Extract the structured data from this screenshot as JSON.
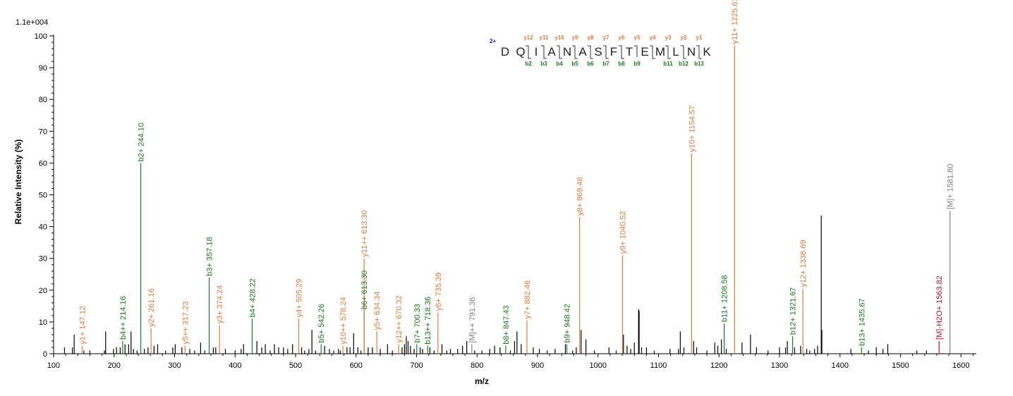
{
  "chart_data": {
    "type": "bar",
    "title": "",
    "scale_label": "1.1e+004",
    "xlabel": "m/z",
    "ylabel": "Relative   Intensity (%)",
    "xlim": [
      100,
      1620
    ],
    "ylim": [
      0,
      100
    ],
    "x_ticks": [
      "100",
      "200",
      "300",
      "400",
      "500",
      "600",
      "700",
      "800",
      "900",
      "1000",
      "1100",
      "1200",
      "1300",
      "1400",
      "1500",
      "1600"
    ],
    "y_ticks": [
      "0",
      "10",
      "20",
      "30",
      "40",
      "50",
      "60",
      "70",
      "80",
      "90",
      "100"
    ],
    "colors": {
      "b": "#1a7a1a",
      "y": "#e07a3a",
      "m": "#808080",
      "loss": "#c0102a",
      "unlabeled": "#000000"
    },
    "annotated_peaks": [
      {
        "mz": 147.12,
        "intensity": 2.5,
        "label": "y1+ 147.12",
        "series": "y"
      },
      {
        "mz": 214.16,
        "intensity": 4,
        "label": "b4++ 214.16",
        "series": "b"
      },
      {
        "mz": 244.1,
        "intensity": 60,
        "label": "b2+ 244.10",
        "series": "b"
      },
      {
        "mz": 261.16,
        "intensity": 8,
        "label": "y2+ 261.16",
        "series": "y"
      },
      {
        "mz": 317.23,
        "intensity": 2.5,
        "label": "y5++ 317.23",
        "series": "y"
      },
      {
        "mz": 357.18,
        "intensity": 24,
        "label": "b3+ 357.18",
        "series": "b"
      },
      {
        "mz": 374.24,
        "intensity": 9,
        "label": "y3+ 374.24",
        "series": "y"
      },
      {
        "mz": 428.22,
        "intensity": 11,
        "label": "b4+ 428.22",
        "series": "b"
      },
      {
        "mz": 505.29,
        "intensity": 11,
        "label": "y4+ 505.29",
        "series": "y"
      },
      {
        "mz": 542.26,
        "intensity": 3,
        "label": "b5+ 542.26",
        "series": "b"
      },
      {
        "mz": 578.24,
        "intensity": 2.5,
        "label": "y10++ 578.24",
        "series": "y"
      },
      {
        "mz": 613.3,
        "intensity": 13.5,
        "label": "b6+ 613.30",
        "series": "b"
      },
      {
        "mz": 613.3,
        "intensity": 30,
        "label": "y11++ 613.30",
        "series": "y"
      },
      {
        "mz": 634.34,
        "intensity": 7,
        "label": "y5+ 634.34",
        "series": "y"
      },
      {
        "mz": 670.32,
        "intensity": 3,
        "label": "y12++ 670.32",
        "series": "y"
      },
      {
        "mz": 700.33,
        "intensity": 3,
        "label": "b7+ 700.33",
        "series": "b"
      },
      {
        "mz": 718.36,
        "intensity": 2.5,
        "label": "b13++ 718.36",
        "series": "b"
      },
      {
        "mz": 735.39,
        "intensity": 13,
        "label": "y6+ 735.39",
        "series": "y"
      },
      {
        "mz": 791.36,
        "intensity": 3,
        "label": "[M]++ 791.36",
        "series": "m"
      },
      {
        "mz": 847.43,
        "intensity": 2.5,
        "label": "b8+ 847.43",
        "series": "b"
      },
      {
        "mz": 882.46,
        "intensity": 10.5,
        "label": "y7+ 882.46",
        "series": "y"
      },
      {
        "mz": 948.42,
        "intensity": 3,
        "label": "b9+ 948.42",
        "series": "b"
      },
      {
        "mz": 969.48,
        "intensity": 43,
        "label": "y8+ 969.48",
        "series": "y"
      },
      {
        "mz": 1040.52,
        "intensity": 31,
        "label": "y9+ 1040.52",
        "series": "y"
      },
      {
        "mz": 1154.57,
        "intensity": 63,
        "label": "y10+ 1154.57",
        "series": "y"
      },
      {
        "mz": 1208.58,
        "intensity": 9.5,
        "label": "b11+ 1208.58",
        "series": "b"
      },
      {
        "mz": 1225.61,
        "intensity": 97,
        "label": "y11+ 1225.61",
        "series": "y"
      },
      {
        "mz": 1321.67,
        "intensity": 5.5,
        "label": "b12+ 1321.67",
        "series": "b"
      },
      {
        "mz": 1338.69,
        "intensity": 20.5,
        "label": "y12+ 1338.69",
        "series": "y"
      },
      {
        "mz": 1435.67,
        "intensity": 2,
        "label": "b13+ 1435.67",
        "series": "b"
      },
      {
        "mz": 1563.82,
        "intensity": 4,
        "label": "[M]-H2O+ 1563.82",
        "series": "loss"
      },
      {
        "mz": 1581.8,
        "intensity": 45,
        "label": "[M]+ 1581.80",
        "series": "m"
      }
    ],
    "unlabeled_peaks": [
      {
        "mz": 118,
        "intensity": 2
      },
      {
        "mz": 131,
        "intensity": 2
      },
      {
        "mz": 134,
        "intensity": 6
      },
      {
        "mz": 150,
        "intensity": 1
      },
      {
        "mz": 160,
        "intensity": 1
      },
      {
        "mz": 184,
        "intensity": 1
      },
      {
        "mz": 186,
        "intensity": 7
      },
      {
        "mz": 199,
        "intensity": 1.5
      },
      {
        "mz": 204,
        "intensity": 2
      },
      {
        "mz": 210,
        "intensity": 2
      },
      {
        "mz": 218,
        "intensity": 3
      },
      {
        "mz": 224,
        "intensity": 3
      },
      {
        "mz": 228,
        "intensity": 7
      },
      {
        "mz": 232,
        "intensity": 1.5
      },
      {
        "mz": 238,
        "intensity": 1
      },
      {
        "mz": 250,
        "intensity": 1.5
      },
      {
        "mz": 256,
        "intensity": 2
      },
      {
        "mz": 266,
        "intensity": 2.5
      },
      {
        "mz": 272,
        "intensity": 3
      },
      {
        "mz": 285,
        "intensity": 1
      },
      {
        "mz": 297,
        "intensity": 2
      },
      {
        "mz": 301,
        "intensity": 3
      },
      {
        "mz": 312,
        "intensity": 2
      },
      {
        "mz": 325,
        "intensity": 1.5
      },
      {
        "mz": 333,
        "intensity": 1
      },
      {
        "mz": 343,
        "intensity": 3.5
      },
      {
        "mz": 350,
        "intensity": 1
      },
      {
        "mz": 364,
        "intensity": 2
      },
      {
        "mz": 368,
        "intensity": 2
      },
      {
        "mz": 384,
        "intensity": 1.5
      },
      {
        "mz": 400,
        "intensity": 1
      },
      {
        "mz": 410,
        "intensity": 1.5
      },
      {
        "mz": 414,
        "intensity": 3
      },
      {
        "mz": 436,
        "intensity": 4
      },
      {
        "mz": 444,
        "intensity": 2
      },
      {
        "mz": 450,
        "intensity": 3
      },
      {
        "mz": 458,
        "intensity": 1
      },
      {
        "mz": 465,
        "intensity": 3
      },
      {
        "mz": 472,
        "intensity": 2
      },
      {
        "mz": 480,
        "intensity": 2
      },
      {
        "mz": 487,
        "intensity": 1.5
      },
      {
        "mz": 495,
        "intensity": 3
      },
      {
        "mz": 510,
        "intensity": 2
      },
      {
        "mz": 515,
        "intensity": 1
      },
      {
        "mz": 522,
        "intensity": 1.5
      },
      {
        "mz": 527,
        "intensity": 7.5
      },
      {
        "mz": 533,
        "intensity": 1
      },
      {
        "mz": 548,
        "intensity": 2.5
      },
      {
        "mz": 556,
        "intensity": 1.5
      },
      {
        "mz": 563,
        "intensity": 1
      },
      {
        "mz": 571,
        "intensity": 1.5
      },
      {
        "mz": 574,
        "intensity": 1
      },
      {
        "mz": 585,
        "intensity": 2
      },
      {
        "mz": 590,
        "intensity": 2
      },
      {
        "mz": 596,
        "intensity": 6.5
      },
      {
        "mz": 603,
        "intensity": 2
      },
      {
        "mz": 608,
        "intensity": 1
      },
      {
        "mz": 620,
        "intensity": 2
      },
      {
        "mz": 627,
        "intensity": 2
      },
      {
        "mz": 640,
        "intensity": 1.5
      },
      {
        "mz": 652,
        "intensity": 3
      },
      {
        "mz": 660,
        "intensity": 1
      },
      {
        "mz": 676,
        "intensity": 2
      },
      {
        "mz": 680,
        "intensity": 3
      },
      {
        "mz": 683,
        "intensity": 5.5
      },
      {
        "mz": 686,
        "intensity": 4
      },
      {
        "mz": 690,
        "intensity": 2.5
      },
      {
        "mz": 696,
        "intensity": 1.5
      },
      {
        "mz": 706,
        "intensity": 2
      },
      {
        "mz": 710,
        "intensity": 1.5
      },
      {
        "mz": 722,
        "intensity": 2
      },
      {
        "mz": 729,
        "intensity": 1
      },
      {
        "mz": 742,
        "intensity": 3
      },
      {
        "mz": 750,
        "intensity": 1
      },
      {
        "mz": 756,
        "intensity": 1.5
      },
      {
        "mz": 768,
        "intensity": 1.5
      },
      {
        "mz": 776,
        "intensity": 2.5
      },
      {
        "mz": 783,
        "intensity": 4
      },
      {
        "mz": 796,
        "intensity": 1
      },
      {
        "mz": 808,
        "intensity": 1
      },
      {
        "mz": 821,
        "intensity": 1.5
      },
      {
        "mz": 829,
        "intensity": 2.5
      },
      {
        "mz": 838,
        "intensity": 2
      },
      {
        "mz": 855,
        "intensity": 1
      },
      {
        "mz": 862,
        "intensity": 4
      },
      {
        "mz": 866,
        "intensity": 7
      },
      {
        "mz": 873,
        "intensity": 3
      },
      {
        "mz": 893,
        "intensity": 2
      },
      {
        "mz": 903,
        "intensity": 1.5
      },
      {
        "mz": 916,
        "intensity": 1
      },
      {
        "mz": 929,
        "intensity": 1.5
      },
      {
        "mz": 946,
        "intensity": 3
      },
      {
        "mz": 958,
        "intensity": 1
      },
      {
        "mz": 964,
        "intensity": 2
      },
      {
        "mz": 972,
        "intensity": 7.5
      },
      {
        "mz": 980,
        "intensity": 4.5
      },
      {
        "mz": 994,
        "intensity": 1
      },
      {
        "mz": 1018,
        "intensity": 2
      },
      {
        "mz": 1030,
        "intensity": 1
      },
      {
        "mz": 1042,
        "intensity": 6
      },
      {
        "mz": 1048,
        "intensity": 2.5
      },
      {
        "mz": 1054,
        "intensity": 1.5
      },
      {
        "mz": 1060,
        "intensity": 3.5
      },
      {
        "mz": 1067,
        "intensity": 14
      },
      {
        "mz": 1068,
        "intensity": 13.5
      },
      {
        "mz": 1072,
        "intensity": 2
      },
      {
        "mz": 1080,
        "intensity": 2
      },
      {
        "mz": 1093,
        "intensity": 1
      },
      {
        "mz": 1119,
        "intensity": 1.5
      },
      {
        "mz": 1133,
        "intensity": 1.5
      },
      {
        "mz": 1136,
        "intensity": 7
      },
      {
        "mz": 1142,
        "intensity": 2
      },
      {
        "mz": 1158,
        "intensity": 4
      },
      {
        "mz": 1163,
        "intensity": 2
      },
      {
        "mz": 1180,
        "intensity": 1
      },
      {
        "mz": 1193,
        "intensity": 3.5
      },
      {
        "mz": 1198,
        "intensity": 2.5
      },
      {
        "mz": 1204,
        "intensity": 4.5
      },
      {
        "mz": 1212,
        "intensity": 1.5
      },
      {
        "mz": 1238,
        "intensity": 3.5
      },
      {
        "mz": 1252,
        "intensity": 6
      },
      {
        "mz": 1262,
        "intensity": 2
      },
      {
        "mz": 1281,
        "intensity": 1
      },
      {
        "mz": 1300,
        "intensity": 2
      },
      {
        "mz": 1310,
        "intensity": 2
      },
      {
        "mz": 1313,
        "intensity": 4
      },
      {
        "mz": 1325,
        "intensity": 2
      },
      {
        "mz": 1335,
        "intensity": 2.5
      },
      {
        "mz": 1345,
        "intensity": 1.5
      },
      {
        "mz": 1350,
        "intensity": 1
      },
      {
        "mz": 1358,
        "intensity": 1.5
      },
      {
        "mz": 1363,
        "intensity": 2.5
      },
      {
        "mz": 1369,
        "intensity": 43.5
      },
      {
        "mz": 1370,
        "intensity": 7.5
      },
      {
        "mz": 1418,
        "intensity": 1.5
      },
      {
        "mz": 1447,
        "intensity": 1
      },
      {
        "mz": 1460,
        "intensity": 2
      },
      {
        "mz": 1471,
        "intensity": 1.5
      },
      {
        "mz": 1479,
        "intensity": 3
      },
      {
        "mz": 1527,
        "intensity": 1
      },
      {
        "mz": 1543,
        "intensity": 1
      }
    ],
    "sequence": {
      "charge_label": "2+",
      "residues": [
        "D",
        "Q",
        "I",
        "A",
        "N",
        "A",
        "S",
        "F",
        "T",
        "E",
        "M",
        "L",
        "N",
        "K"
      ],
      "y_ions": [
        "y12",
        "y11",
        "y10",
        "y9",
        "y8",
        "y7",
        "y6",
        "y5",
        "y4",
        "y3",
        "y2",
        "y1"
      ],
      "b_ions": [
        "b2",
        "b3",
        "b4",
        "b5",
        "b6",
        "b7",
        "b8",
        "b9",
        "b11",
        "b12",
        "b13"
      ]
    }
  }
}
